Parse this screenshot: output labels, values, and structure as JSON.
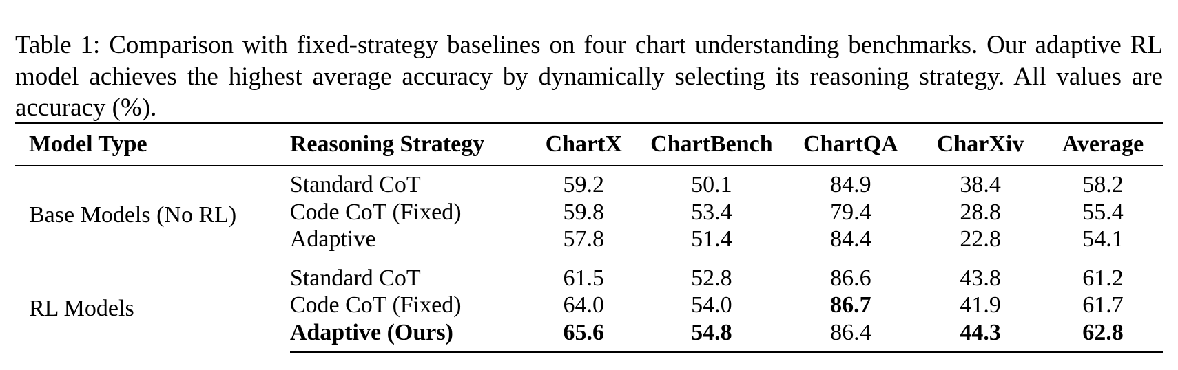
{
  "caption": {
    "label": "Table 1:",
    "text": "Comparison with fixed-strategy baselines on four chart understanding benchmarks. Our adaptive RL model achieves the highest average accuracy by dynamically selecting its reasoning strategy. All values are accuracy (%)."
  },
  "table": {
    "headers": {
      "model_type": "Model Type",
      "strategy": "Reasoning Strategy",
      "chartx": "ChartX",
      "chartbench": "ChartBench",
      "chartqa": "ChartQA",
      "charxiv": "CharXiv",
      "average": "Average"
    },
    "groups": [
      {
        "model_type": "Base Models (No RL)",
        "rows": [
          {
            "strategy": "Standard CoT",
            "chartx": "59.2",
            "chartbench": "50.1",
            "chartqa": "84.9",
            "charxiv": "38.4",
            "average": "58.2"
          },
          {
            "strategy": "Code CoT (Fixed)",
            "chartx": "59.8",
            "chartbench": "53.4",
            "chartqa": "79.4",
            "charxiv": "28.8",
            "average": "55.4"
          },
          {
            "strategy": "Adaptive",
            "chartx": "57.8",
            "chartbench": "51.4",
            "chartqa": "84.4",
            "charxiv": "22.8",
            "average": "54.1"
          }
        ]
      },
      {
        "model_type": "RL Models",
        "rows": [
          {
            "strategy": "Standard CoT",
            "chartx": "61.5",
            "chartbench": "52.8",
            "chartqa": "86.6",
            "charxiv": "43.8",
            "average": "61.2"
          },
          {
            "strategy": "Code CoT (Fixed)",
            "chartx": "64.0",
            "chartbench": "54.0",
            "chartqa": "86.7",
            "charxiv": "41.9",
            "average": "61.7"
          },
          {
            "strategy": "Adaptive (Ours)",
            "chartx": "65.6",
            "chartbench": "54.8",
            "chartqa": "86.4",
            "charxiv": "44.3",
            "average": "62.8"
          }
        ]
      }
    ]
  }
}
